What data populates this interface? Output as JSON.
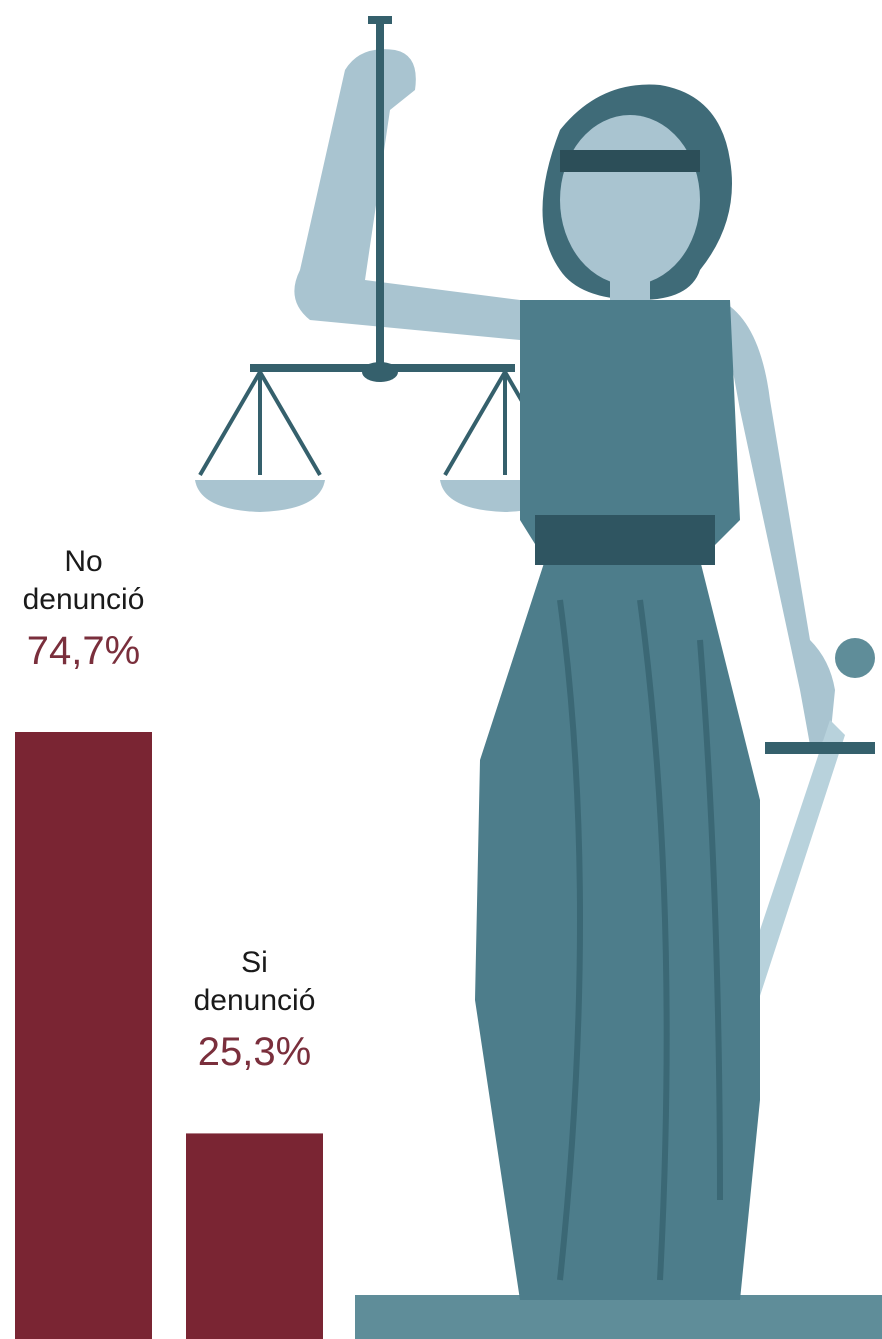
{
  "chart_data": {
    "type": "bar",
    "categories": [
      "No denunció",
      "Si denunció"
    ],
    "values": [
      74.7,
      25.3
    ],
    "value_labels": [
      "74,7%",
      "25,3%"
    ],
    "color": "#7a2533"
  }
}
